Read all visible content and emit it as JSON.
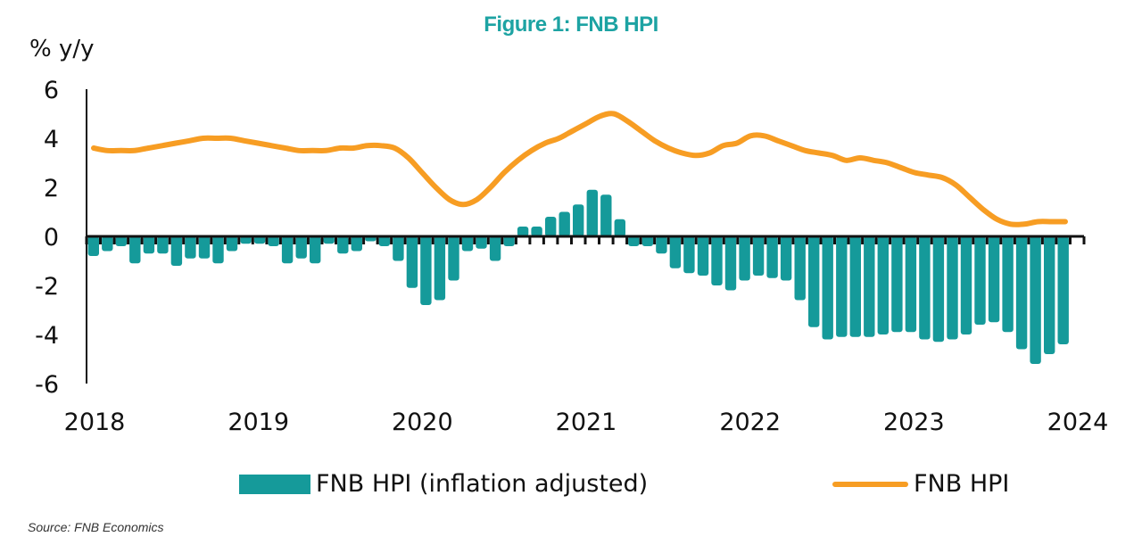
{
  "chart_data": {
    "type": "bar+line",
    "title": "Figure 1: FNB HPI",
    "ylabel": "% y/y",
    "xlabel": "",
    "ylim": [
      -6,
      6
    ],
    "yticks": [
      "6",
      "4",
      "2",
      "0",
      "-2",
      "-4",
      "-6"
    ],
    "ytick_values": [
      6,
      4,
      2,
      0,
      -2,
      -4,
      -6
    ],
    "xticks": [
      "2018",
      "2019",
      "2020",
      "2021",
      "2022",
      "2023",
      "2024"
    ],
    "x_frequency": "monthly",
    "x_start": "2018-01",
    "grid": false,
    "legend_position": "bottom",
    "series": [
      {
        "name": "FNB HPI (inflation adjusted)",
        "kind": "bar",
        "color": "#159a9a",
        "values": [
          -0.8,
          -0.6,
          -0.4,
          -1.1,
          -0.7,
          -0.7,
          -1.2,
          -0.9,
          -0.9,
          -1.1,
          -0.6,
          -0.3,
          -0.3,
          -0.4,
          -1.1,
          -0.9,
          -1.1,
          -0.3,
          -0.7,
          -0.6,
          -0.2,
          -0.4,
          -1.0,
          -2.1,
          -2.8,
          -2.6,
          -1.8,
          -0.6,
          -0.5,
          -1.0,
          -0.4,
          0.4,
          0.4,
          0.8,
          1.0,
          1.3,
          1.9,
          1.7,
          0.7,
          -0.4,
          -0.4,
          -0.7,
          -1.3,
          -1.5,
          -1.6,
          -2.0,
          -2.2,
          -1.8,
          -1.6,
          -1.7,
          -1.8,
          -2.6,
          -3.7,
          -4.2,
          -4.1,
          -4.1,
          -4.1,
          -4.0,
          -3.9,
          -3.9,
          -4.2,
          -4.3,
          -4.2,
          -4.0,
          -3.6,
          -3.5,
          -3.9,
          -4.6,
          -5.2,
          -4.8,
          -4.4
        ]
      },
      {
        "name": "FNB HPI",
        "kind": "line",
        "color": "#f79d23",
        "values": [
          3.6,
          3.5,
          3.5,
          3.5,
          3.6,
          3.7,
          3.8,
          3.9,
          4.0,
          4.0,
          4.0,
          3.9,
          3.8,
          3.7,
          3.6,
          3.5,
          3.5,
          3.5,
          3.6,
          3.6,
          3.7,
          3.7,
          3.6,
          3.2,
          2.6,
          2.0,
          1.5,
          1.3,
          1.5,
          2.0,
          2.6,
          3.1,
          3.5,
          3.8,
          4.0,
          4.3,
          4.6,
          4.9,
          5.0,
          4.7,
          4.3,
          3.9,
          3.6,
          3.4,
          3.3,
          3.4,
          3.7,
          3.8,
          4.1,
          4.1,
          3.9,
          3.7,
          3.5,
          3.4,
          3.3,
          3.1,
          3.2,
          3.1,
          3.0,
          2.8,
          2.6,
          2.5,
          2.4,
          2.1,
          1.6,
          1.1,
          0.7,
          0.5,
          0.5,
          0.6,
          0.6,
          0.6
        ]
      }
    ]
  },
  "legend": {
    "bar_label": "FNB HPI (inflation adjusted)",
    "line_label": "FNB HPI"
  },
  "source": "Source: FNB Economics"
}
